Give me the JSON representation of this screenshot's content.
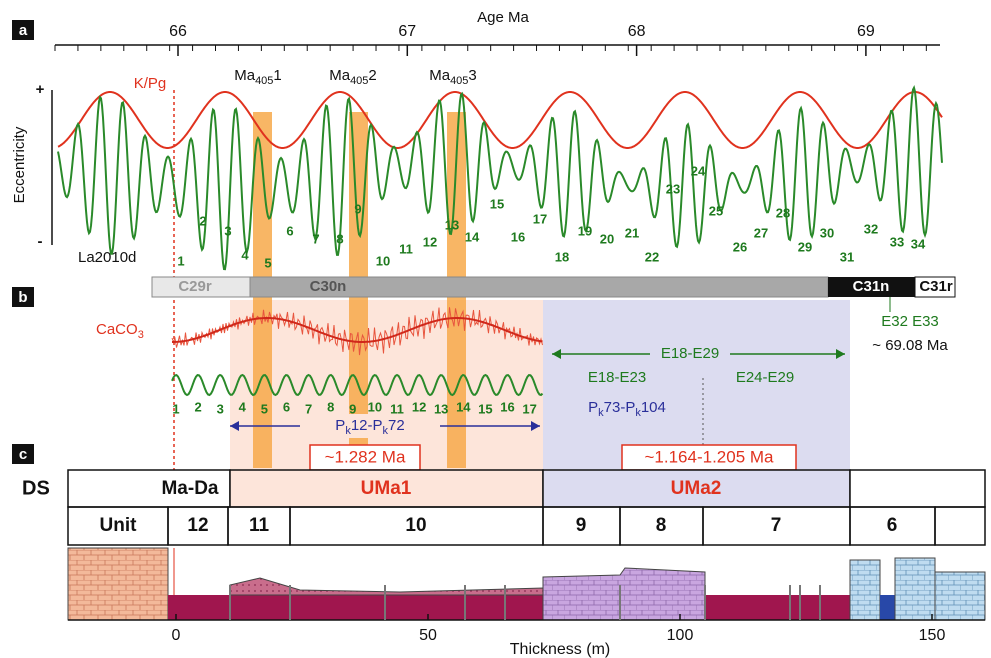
{
  "panel_labels": [
    "a",
    "b",
    "c"
  ],
  "age_axis": {
    "title": "Age Ma",
    "ticks": [
      66,
      67,
      68,
      69
    ]
  },
  "panel_a": {
    "y_label": "Eccentricity",
    "y_plus": "+",
    "y_minus": "-",
    "kpg": "K/Pg",
    "ma405": [
      [
        {
          "t": "Ma"
        },
        {
          "sub": "405"
        },
        {
          "t": "1"
        }
      ],
      [
        {
          "t": "Ma"
        },
        {
          "sub": "405"
        },
        {
          "t": "2"
        }
      ],
      [
        {
          "t": "Ma"
        },
        {
          "sub": "405"
        },
        {
          "t": "3"
        }
      ]
    ],
    "solution": "La2010d",
    "cycles": [
      1,
      2,
      3,
      4,
      5,
      6,
      7,
      8,
      9,
      10,
      11,
      12,
      13,
      14,
      15,
      16,
      17,
      18,
      19,
      20,
      21,
      22,
      23,
      24,
      25,
      26,
      27,
      28,
      29,
      30,
      31,
      32,
      33,
      34
    ]
  },
  "chrons": [
    "C29r",
    "C30n",
    "C31n",
    "C31r"
  ],
  "panel_b": {
    "proxy": [
      {
        "t": "CaCO"
      },
      {
        "sub": "3"
      }
    ],
    "cycles": [
      1,
      2,
      3,
      4,
      5,
      6,
      7,
      8,
      9,
      10,
      11,
      12,
      13,
      14,
      15,
      16,
      17
    ],
    "e_labels": "E32 E33",
    "age_note": "~ 69.08 Ma",
    "e_range": "E18-E29",
    "e_low": "E18-E23",
    "e_high": "E24-E29",
    "pk_lower": [
      {
        "t": "P"
      },
      {
        "sub": "k"
      },
      {
        "t": "12-P"
      },
      {
        "sub": "k"
      },
      {
        "t": "72"
      }
    ],
    "pk_upper": [
      {
        "t": "P"
      },
      {
        "sub": "k"
      },
      {
        "t": "73-P"
      },
      {
        "sub": "k"
      },
      {
        "t": "104"
      }
    ],
    "duration_1": "~1.282 Ma",
    "duration_2": "~1.164-1.205 Ma"
  },
  "panel_c": {
    "ds_label": "DS",
    "sequences": [
      "Ma-Da",
      "UMa1",
      "UMa2"
    ],
    "unit_label": "Unit",
    "units": [
      12,
      11,
      10,
      9,
      8,
      7,
      6
    ]
  },
  "thickness_axis": {
    "title": "Thickness (m)",
    "ticks": [
      0,
      50,
      100,
      150
    ]
  }
}
